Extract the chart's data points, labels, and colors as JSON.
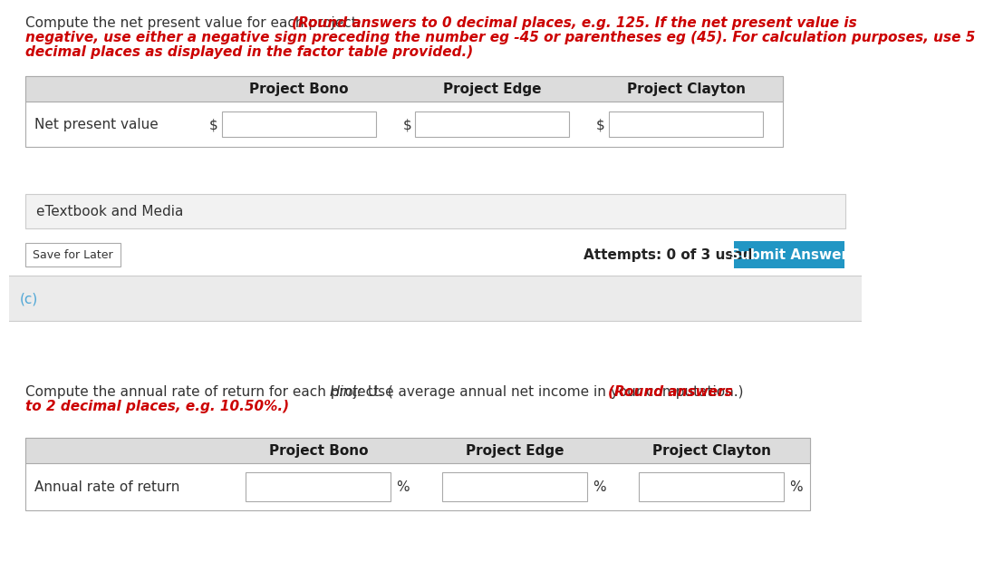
{
  "bg_color": "#ffffff",
  "intro1_black": "Compute the net present value for each project. ",
  "intro1_red": "(Round answers to 0 decimal places, e.g. 125. If the net present value is\nnegative, use either a negative sign preceding the number eg -45 or parentheses eg (45). For calculation purposes, use 5\ndecimal places as displayed in the factor table provided.)",
  "table1_headers": [
    "Project Bono",
    "Project Edge",
    "Project Clayton"
  ],
  "table1_row_label": "Net present value",
  "currency": "$",
  "etextbook_label": "eTextbook and Media",
  "save_later_label": "Save for Later",
  "attempts_label": "Attempts: 0 of 3 used",
  "submit_label": "Submit Answer",
  "submit_bg": "#2196c4",
  "section_c_label": "(c)",
  "section_c_color": "#4da6d6",
  "section_bg": "#ebebeb",
  "intro2_black1": "Compute the annual rate of return for each project. (",
  "intro2_hint": "Hint:",
  "intro2_black2": " Use average annual net income in your computation.) ",
  "intro2_red": "(Round answers\nto 2 decimal places, e.g. 10.50%.)",
  "table2_headers": [
    "Project Bono",
    "Project Edge",
    "Project Clayton"
  ],
  "table2_row_label": "Annual rate of return",
  "percent": "%",
  "header_bg": "#dcdcdc",
  "input_border": "#aaaaaa",
  "font_size": 11,
  "font_size_small": 9
}
